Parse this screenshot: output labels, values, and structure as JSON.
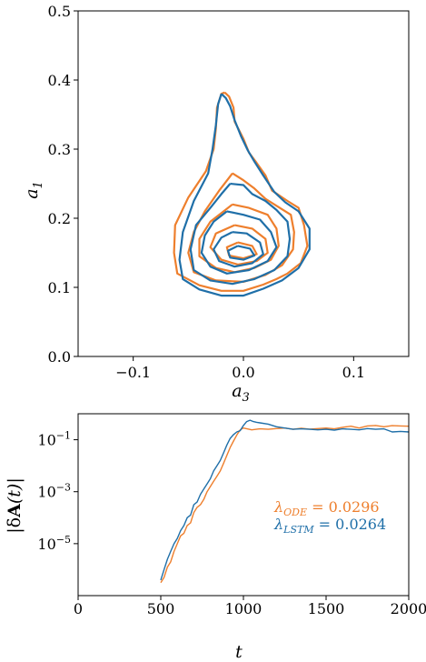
{
  "colors": {
    "ode": "#ee7f2d",
    "lstm": "#1f6fa8"
  },
  "chart_data": [
    {
      "type": "line",
      "subtype": "contour",
      "xlabel": "a3",
      "ylabel": "a1",
      "xlim": [
        -0.15,
        0.15
      ],
      "ylim": [
        0.0,
        0.5
      ],
      "xticks": [
        "−0.1",
        "0.0",
        "0.1"
      ],
      "xtick_values": [
        -0.1,
        0.0,
        0.1
      ],
      "yticks": [
        "0.0",
        "0.1",
        "0.2",
        "0.3",
        "0.4",
        "0.5"
      ],
      "ytick_values": [
        0.0,
        0.1,
        0.2,
        0.3,
        0.4,
        0.5
      ],
      "grid": false,
      "series": [
        {
          "color": "#ee7f2d",
          "contours": [
            [
              [
                -0.017,
                0.382
              ],
              [
                -0.013,
                0.376
              ],
              [
                -0.009,
                0.36
              ],
              [
                -0.008,
                0.34
              ],
              [
                0.0,
                0.315
              ],
              [
                0.005,
                0.295
              ],
              [
                0.012,
                0.28
              ],
              [
                0.02,
                0.262
              ],
              [
                0.026,
                0.24
              ],
              [
                0.04,
                0.225
              ],
              [
                0.05,
                0.215
              ],
              [
                0.055,
                0.19
              ],
              [
                0.058,
                0.16
              ],
              [
                0.052,
                0.135
              ],
              [
                0.04,
                0.12
              ],
              [
                0.03,
                0.112
              ],
              [
                0.018,
                0.104
              ],
              [
                0.0,
                0.095
              ],
              [
                -0.02,
                0.095
              ],
              [
                -0.04,
                0.103
              ],
              [
                -0.06,
                0.12
              ],
              [
                -0.063,
                0.15
              ],
              [
                -0.062,
                0.19
              ],
              [
                -0.05,
                0.23
              ],
              [
                -0.034,
                0.268
              ],
              [
                -0.027,
                0.3
              ],
              [
                -0.025,
                0.33
              ],
              [
                -0.024,
                0.36
              ],
              [
                -0.02,
                0.38
              ],
              [
                -0.017,
                0.382
              ]
            ],
            [
              [
                -0.01,
                0.265
              ],
              [
                0.0,
                0.255
              ],
              [
                0.01,
                0.243
              ],
              [
                0.02,
                0.228
              ],
              [
                0.03,
                0.218
              ],
              [
                0.043,
                0.205
              ],
              [
                0.046,
                0.18
              ],
              [
                0.045,
                0.155
              ],
              [
                0.035,
                0.132
              ],
              [
                0.02,
                0.118
              ],
              [
                0.0,
                0.108
              ],
              [
                -0.025,
                0.11
              ],
              [
                -0.045,
                0.122
              ],
              [
                -0.05,
                0.15
              ],
              [
                -0.045,
                0.18
              ],
              [
                -0.035,
                0.21
              ],
              [
                -0.022,
                0.24
              ],
              [
                -0.01,
                0.265
              ]
            ],
            [
              [
                -0.01,
                0.22
              ],
              [
                0.005,
                0.215
              ],
              [
                0.022,
                0.205
              ],
              [
                0.03,
                0.185
              ],
              [
                0.032,
                0.16
              ],
              [
                0.025,
                0.14
              ],
              [
                0.01,
                0.128
              ],
              [
                -0.008,
                0.122
              ],
              [
                -0.025,
                0.128
              ],
              [
                -0.04,
                0.145
              ],
              [
                -0.04,
                0.17
              ],
              [
                -0.03,
                0.195
              ],
              [
                -0.01,
                0.22
              ]
            ],
            [
              [
                -0.008,
                0.19
              ],
              [
                0.008,
                0.185
              ],
              [
                0.02,
                0.17
              ],
              [
                0.022,
                0.15
              ],
              [
                0.012,
                0.138
              ],
              [
                -0.005,
                0.133
              ],
              [
                -0.02,
                0.14
              ],
              [
                -0.03,
                0.158
              ],
              [
                -0.025,
                0.178
              ],
              [
                -0.008,
                0.19
              ]
            ],
            [
              [
                -0.005,
                0.165
              ],
              [
                0.008,
                0.16
              ],
              [
                0.012,
                0.148
              ],
              [
                0.0,
                0.142
              ],
              [
                -0.013,
                0.146
              ],
              [
                -0.015,
                0.158
              ],
              [
                -0.005,
                0.165
              ]
            ]
          ]
        },
        {
          "color": "#1f6fa8",
          "contours": [
            [
              [
                -0.02,
                0.38
              ],
              [
                -0.016,
                0.374
              ],
              [
                -0.012,
                0.362
              ],
              [
                -0.008,
                0.342
              ],
              [
                -0.002,
                0.318
              ],
              [
                0.004,
                0.298
              ],
              [
                0.01,
                0.282
              ],
              [
                0.018,
                0.262
              ],
              [
                0.028,
                0.238
              ],
              [
                0.038,
                0.223
              ],
              [
                0.05,
                0.21
              ],
              [
                0.06,
                0.185
              ],
              [
                0.06,
                0.155
              ],
              [
                0.05,
                0.128
              ],
              [
                0.035,
                0.11
              ],
              [
                0.018,
                0.098
              ],
              [
                0.0,
                0.088
              ],
              [
                -0.02,
                0.088
              ],
              [
                -0.04,
                0.097
              ],
              [
                -0.055,
                0.112
              ],
              [
                -0.058,
                0.14
              ],
              [
                -0.055,
                0.18
              ],
              [
                -0.045,
                0.225
              ],
              [
                -0.032,
                0.265
              ],
              [
                -0.028,
                0.3
              ],
              [
                -0.025,
                0.335
              ],
              [
                -0.023,
                0.365
              ],
              [
                -0.02,
                0.38
              ]
            ],
            [
              [
                -0.012,
                0.25
              ],
              [
                0.0,
                0.248
              ],
              [
                0.008,
                0.235
              ],
              [
                0.02,
                0.225
              ],
              [
                0.03,
                0.212
              ],
              [
                0.04,
                0.195
              ],
              [
                0.042,
                0.17
              ],
              [
                0.04,
                0.145
              ],
              [
                0.028,
                0.125
              ],
              [
                0.01,
                0.112
              ],
              [
                -0.01,
                0.105
              ],
              [
                -0.03,
                0.11
              ],
              [
                -0.045,
                0.125
              ],
              [
                -0.048,
                0.155
              ],
              [
                -0.043,
                0.19
              ],
              [
                -0.03,
                0.215
              ],
              [
                -0.02,
                0.235
              ],
              [
                -0.012,
                0.25
              ]
            ],
            [
              [
                -0.015,
                0.21
              ],
              [
                0.0,
                0.205
              ],
              [
                0.015,
                0.198
              ],
              [
                0.025,
                0.18
              ],
              [
                0.03,
                0.158
              ],
              [
                0.022,
                0.138
              ],
              [
                0.005,
                0.125
              ],
              [
                -0.015,
                0.12
              ],
              [
                -0.03,
                0.13
              ],
              [
                -0.038,
                0.15
              ],
              [
                -0.035,
                0.175
              ],
              [
                -0.027,
                0.195
              ],
              [
                -0.015,
                0.21
              ]
            ],
            [
              [
                -0.01,
                0.18
              ],
              [
                0.003,
                0.178
              ],
              [
                0.015,
                0.165
              ],
              [
                0.018,
                0.148
              ],
              [
                0.008,
                0.135
              ],
              [
                -0.008,
                0.13
              ],
              [
                -0.022,
                0.138
              ],
              [
                -0.027,
                0.155
              ],
              [
                -0.02,
                0.172
              ],
              [
                -0.01,
                0.18
              ]
            ],
            [
              [
                -0.005,
                0.16
              ],
              [
                0.006,
                0.156
              ],
              [
                0.01,
                0.146
              ],
              [
                0.0,
                0.14
              ],
              [
                -0.012,
                0.143
              ],
              [
                -0.014,
                0.153
              ],
              [
                -0.005,
                0.16
              ]
            ]
          ]
        }
      ]
    },
    {
      "type": "line",
      "ylog": true,
      "xlabel": "t",
      "ylabel": "|δA(t)|",
      "xlim": [
        0,
        2000
      ],
      "ylim_log10": [
        -7,
        0
      ],
      "xticks": [
        "0",
        "500",
        "1000",
        "1500",
        "2000"
      ],
      "xtick_values": [
        0,
        500,
        1000,
        1500,
        2000
      ],
      "yticks": [
        "10−5",
        "10−3",
        "10−1"
      ],
      "ytick_exponents": [
        -5,
        -3,
        -1
      ],
      "grid": false,
      "annotations": [
        {
          "base": "λ",
          "sub": "ODE",
          "rest": " = 0.0296",
          "color": "#ee7f2d"
        },
        {
          "base": "λ",
          "sub": "LSTM",
          "rest": " = 0.0264",
          "color": "#1f6fa8"
        }
      ],
      "series": [
        {
          "color": "#ee7f2d",
          "x": [
            500,
            520,
            540,
            560,
            580,
            600,
            620,
            640,
            660,
            680,
            700,
            720,
            740,
            760,
            780,
            800,
            820,
            840,
            860,
            880,
            900,
            920,
            940,
            960,
            980,
            1000,
            1050,
            1100,
            1150,
            1200,
            1250,
            1300,
            1350,
            1400,
            1450,
            1500,
            1550,
            1600,
            1650,
            1700,
            1750,
            1800,
            1850,
            1900,
            1950,
            2000
          ],
          "log10y": [
            -6.5,
            -6.3,
            -5.9,
            -5.7,
            -5.3,
            -5.0,
            -4.7,
            -4.6,
            -4.3,
            -4.2,
            -3.8,
            -3.6,
            -3.5,
            -3.3,
            -3.0,
            -2.8,
            -2.6,
            -2.4,
            -2.2,
            -1.9,
            -1.6,
            -1.3,
            -1.05,
            -0.82,
            -0.62,
            -0.55,
            -0.62,
            -0.58,
            -0.6,
            -0.57,
            -0.55,
            -0.6,
            -0.56,
            -0.59,
            -0.57,
            -0.55,
            -0.58,
            -0.52,
            -0.48,
            -0.55,
            -0.47,
            -0.45,
            -0.5,
            -0.46,
            -0.47,
            -0.48
          ]
        },
        {
          "color": "#1f6fa8",
          "x": [
            500,
            520,
            540,
            560,
            580,
            600,
            620,
            640,
            660,
            680,
            700,
            720,
            740,
            760,
            780,
            800,
            820,
            840,
            860,
            880,
            900,
            920,
            940,
            960,
            980,
            1000,
            1020,
            1040,
            1060,
            1080,
            1100,
            1150,
            1200,
            1250,
            1300,
            1350,
            1400,
            1450,
            1500,
            1550,
            1600,
            1650,
            1700,
            1750,
            1800,
            1850,
            1900,
            1950,
            2000
          ],
          "log10y": [
            -6.4,
            -6.0,
            -5.6,
            -5.3,
            -5.0,
            -4.8,
            -4.5,
            -4.3,
            -4.0,
            -3.9,
            -3.5,
            -3.4,
            -3.1,
            -2.9,
            -2.7,
            -2.5,
            -2.2,
            -2.0,
            -1.8,
            -1.5,
            -1.2,
            -0.95,
            -0.8,
            -0.7,
            -0.65,
            -0.45,
            -0.3,
            -0.25,
            -0.3,
            -0.33,
            -0.35,
            -0.4,
            -0.5,
            -0.55,
            -0.6,
            -0.58,
            -0.6,
            -0.62,
            -0.6,
            -0.63,
            -0.58,
            -0.6,
            -0.62,
            -0.57,
            -0.6,
            -0.58,
            -0.7,
            -0.68,
            -0.7
          ]
        }
      ]
    }
  ]
}
